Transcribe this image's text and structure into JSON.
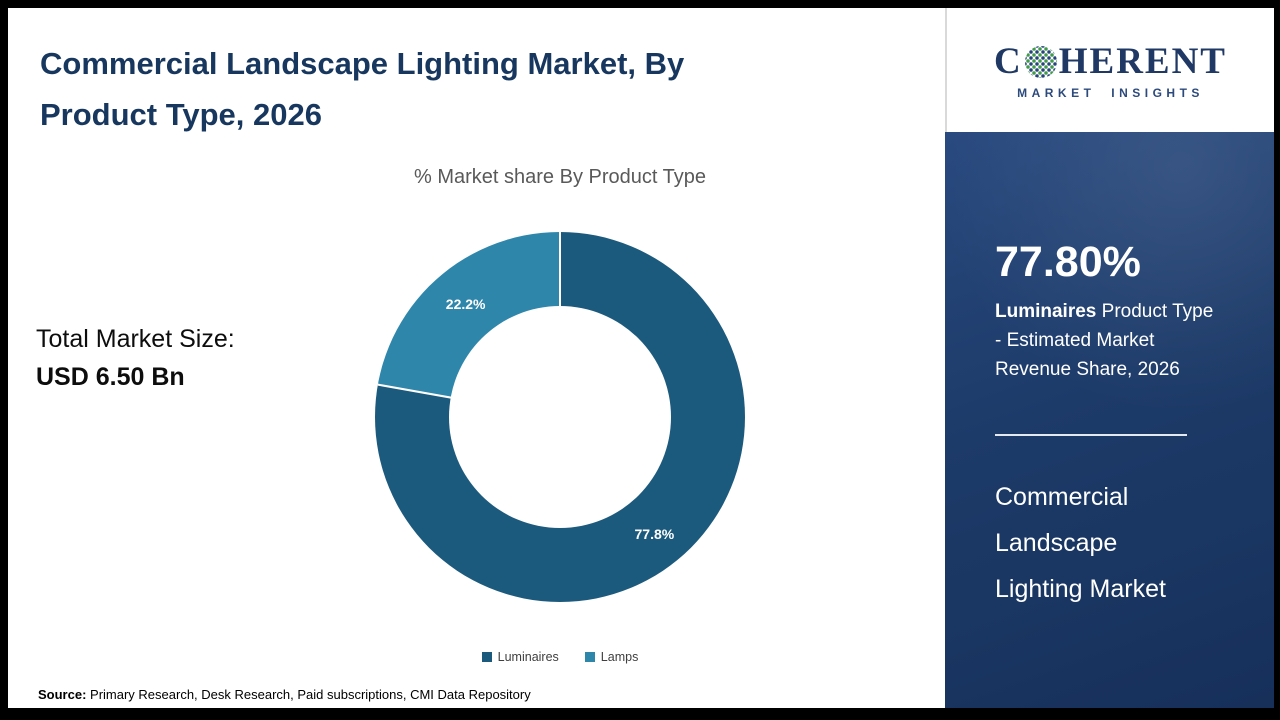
{
  "header": {
    "title": "Commercial Landscape Lighting Market, By Product Type, 2026"
  },
  "main": {
    "total_market_label": "Total Market Size:",
    "total_market_value": "USD 6.50 Bn",
    "source_label": "Source:",
    "source_text": " Primary Research, Desk Research, Paid subscriptions, CMI Data Repository"
  },
  "chart_data": {
    "type": "pie",
    "donut": true,
    "title": "% Market share By Product Type",
    "categories": [
      "Luminaires",
      "Lamps"
    ],
    "values": [
      77.8,
      22.2
    ],
    "labels": [
      "77.8%",
      "22.2%"
    ],
    "colors": [
      "#1c5a7d",
      "#2e86ab"
    ],
    "legend_position": "bottom",
    "start_angle_deg": 0,
    "direction": "clockwise"
  },
  "sidebar": {
    "logo_c": "C",
    "logo_rest": "HERENT",
    "logo_subtitle": "MARKET INSIGHTS",
    "stat_value": "77.80%",
    "stat_bold": "Luminaires",
    "stat_rest": " Product Type - Estimated Market Revenue Share, 2026",
    "panel_title": "Commercial Landscape Lighting Market"
  }
}
